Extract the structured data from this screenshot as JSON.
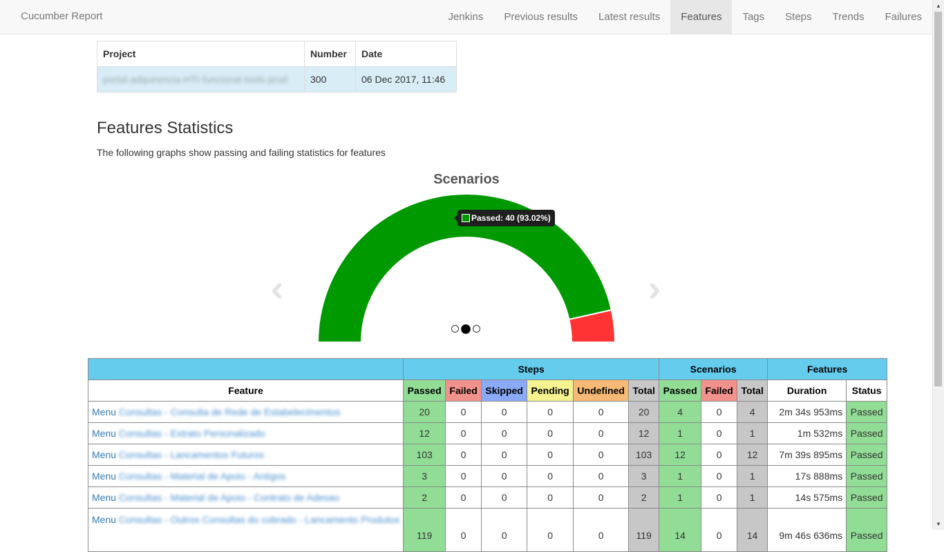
{
  "navbar": {
    "brand": "Cucumber Report",
    "items": [
      "Jenkins",
      "Previous results",
      "Latest results",
      "Features",
      "Tags",
      "Steps",
      "Trends",
      "Failures"
    ],
    "active": "Features"
  },
  "build_info": {
    "headers": {
      "project": "Project",
      "number": "Number",
      "date": "Date"
    },
    "project": "portal-adquirencia-HTI-funcional-tools-prod",
    "number": "300",
    "date": "06 Dec 2017, 11:46"
  },
  "stats_section": {
    "title": "Features Statistics",
    "description": "The following graphs show passing and failing statistics for features"
  },
  "chart_data": {
    "type": "pie",
    "style": "half-donut",
    "title": "Scenarios",
    "slices": [
      {
        "label": "Passed",
        "value": 40,
        "percent": 93.02,
        "color": "#009900"
      },
      {
        "label": "Failed",
        "value": 3,
        "percent": 6.98,
        "color": "#ff3333"
      }
    ],
    "tooltip": "Passed: 40 (93.02%)"
  },
  "carousel": {
    "dots": 3,
    "active_index": 1,
    "prev_glyph": "‹",
    "next_glyph": "›"
  },
  "stats_table": {
    "groups": {
      "steps": "Steps",
      "scenarios": "Scenarios",
      "features": "Features"
    },
    "headers": {
      "feature": "Feature",
      "passed": "Passed",
      "failed": "Failed",
      "skipped": "Skipped",
      "pending": "Pending",
      "undefined": "Undefined",
      "total": "Total",
      "sc_passed": "Passed",
      "sc_failed": "Failed",
      "sc_total": "Total",
      "duration": "Duration",
      "status": "Status"
    },
    "rows": [
      {
        "prefix": "Menu",
        "name": "Consultas - Consulta de Rede de Estabelecimentos",
        "steps": [
          "20",
          "0",
          "0",
          "0",
          "0",
          "20"
        ],
        "scenarios": [
          "4",
          "0",
          "4"
        ],
        "duration": "2m 34s 953ms",
        "status": "Passed"
      },
      {
        "prefix": "Menu",
        "name": "Consultas - Extrato Personalizado",
        "steps": [
          "12",
          "0",
          "0",
          "0",
          "0",
          "12"
        ],
        "scenarios": [
          "1",
          "0",
          "1"
        ],
        "duration": "1m 532ms",
        "status": "Passed"
      },
      {
        "prefix": "Menu",
        "name": "Consultas - Lancamentos Futuros",
        "steps": [
          "103",
          "0",
          "0",
          "0",
          "0",
          "103"
        ],
        "scenarios": [
          "12",
          "0",
          "12"
        ],
        "duration": "7m 39s 895ms",
        "status": "Passed"
      },
      {
        "prefix": "Menu",
        "name": "Consultas - Material de Apoio - Antigos",
        "steps": [
          "3",
          "0",
          "0",
          "0",
          "0",
          "3"
        ],
        "scenarios": [
          "1",
          "0",
          "1"
        ],
        "duration": "17s 888ms",
        "status": "Passed"
      },
      {
        "prefix": "Menu",
        "name": "Consultas - Material de Apoio - Contrato de Adesao",
        "steps": [
          "2",
          "0",
          "0",
          "0",
          "0",
          "2"
        ],
        "scenarios": [
          "1",
          "0",
          "1"
        ],
        "duration": "14s 575ms",
        "status": "Passed"
      },
      {
        "prefix": "Menu",
        "name": "Consultas - Outros Consultas do cobrado - Lancamento Produtos",
        "steps": [
          "119",
          "0",
          "0",
          "0",
          "0",
          "119"
        ],
        "scenarios": [
          "14",
          "0",
          "14"
        ],
        "duration": "9m 46s 636ms",
        "status": "Passed"
      }
    ]
  }
}
